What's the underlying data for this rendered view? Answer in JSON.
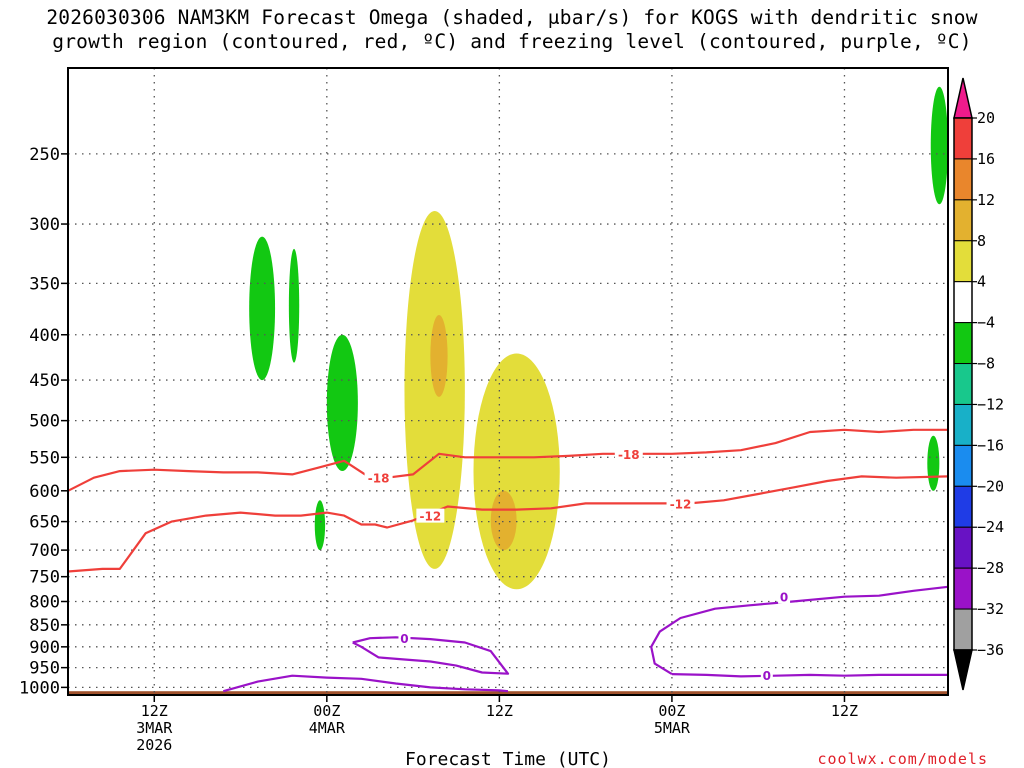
{
  "title": {
    "line1": "2026030306 NAM3KM Forecast Omega (shaded, μbar/s) for KOGS with dendritic snow",
    "line2": "growth region (contoured, red, ºC) and freezing level (contoured, purple, ºC)"
  },
  "credit": "coolwx.com/models",
  "chart_data": {
    "type": "contour",
    "xlabel": "Forecast Time (UTC)",
    "ylabel": "",
    "y_scale": "log-pressure",
    "ylim": [
      1020,
      200
    ],
    "xlim_hours": [
      0,
      51
    ],
    "grid": true,
    "y_ticks": [
      250,
      300,
      350,
      400,
      450,
      500,
      550,
      600,
      650,
      700,
      750,
      800,
      850,
      900,
      950,
      1000
    ],
    "x_ticks": [
      {
        "hour": 5,
        "lines": [
          "12Z",
          "3MAR",
          "2026"
        ]
      },
      {
        "hour": 15,
        "lines": [
          "00Z",
          "4MAR"
        ]
      },
      {
        "hour": 25,
        "lines": [
          "12Z"
        ]
      },
      {
        "hour": 35,
        "lines": [
          "00Z",
          "5MAR"
        ]
      },
      {
        "hour": 45,
        "lines": [
          "12Z"
        ]
      }
    ],
    "colorbar": {
      "levels": [
        "20",
        "16",
        "12",
        "8",
        "4",
        "−4",
        "−8",
        "−12",
        "−16",
        "−20",
        "−24",
        "−28",
        "−32",
        "−36"
      ],
      "colors": [
        "#f01b8c",
        "#ef3f3a",
        "#e9862c",
        "#e3b12f",
        "#e3dd3a",
        "#ffffff",
        "#12c812",
        "#18c88c",
        "#18b0c8",
        "#1a8cef",
        "#1f3ce6",
        "#6812c4",
        "#9a12c8",
        "#a0a0a0"
      ]
    },
    "omega_regions": [
      {
        "color": "#e3dd3a",
        "value_range": "4 to 8",
        "hours": [
          19.5,
          23.0
        ],
        "pressure": [
          290,
          735
        ]
      },
      {
        "color": "#e3dd3a",
        "value_range": "4 to 8",
        "hours": [
          23.5,
          28.5
        ],
        "pressure": [
          420,
          775
        ]
      },
      {
        "color": "#e3b12f",
        "value_range": "8 to 12",
        "hours": [
          21.0,
          22.0
        ],
        "pressure": [
          380,
          470
        ]
      },
      {
        "color": "#e3b12f",
        "value_range": "8 to 12",
        "hours": [
          24.5,
          26.0
        ],
        "pressure": [
          600,
          700
        ]
      },
      {
        "color": "#12c812",
        "value_range": "-4 to -8",
        "hours": [
          10.5,
          12.0
        ],
        "pressure": [
          310,
          450
        ]
      },
      {
        "color": "#12c812",
        "value_range": "-4 to -8",
        "hours": [
          12.8,
          13.4
        ],
        "pressure": [
          320,
          430
        ]
      },
      {
        "color": "#12c812",
        "value_range": "-4 to -8",
        "hours": [
          15.0,
          16.8
        ],
        "pressure": [
          400,
          570
        ]
      },
      {
        "color": "#12c812",
        "value_range": "-4 to -8",
        "hours": [
          14.3,
          14.9
        ],
        "pressure": [
          615,
          700
        ]
      },
      {
        "color": "#12c812",
        "value_range": "-4 to -8",
        "hours": [
          50.0,
          51.0
        ],
        "pressure": [
          210,
          285
        ]
      },
      {
        "color": "#12c812",
        "value_range": "-4 to -8",
        "hours": [
          49.8,
          50.5
        ],
        "pressure": [
          520,
          600
        ]
      }
    ],
    "series": [
      {
        "name": "-18",
        "color": "#ef3f3a",
        "x": [
          0,
          1.5,
          3,
          5,
          7,
          9,
          11,
          13,
          14.5,
          16,
          17.5,
          18.5,
          20,
          21.5,
          23,
          25,
          27,
          29,
          31,
          33,
          35,
          37,
          39,
          41,
          43,
          45,
          47,
          49,
          51
        ],
        "y": [
          600,
          580,
          570,
          568,
          570,
          572,
          572,
          575,
          565,
          555,
          580,
          580,
          575,
          545,
          550,
          550,
          550,
          548,
          545,
          545,
          545,
          543,
          540,
          530,
          515,
          512,
          515,
          512,
          512
        ]
      },
      {
        "name": "-12",
        "color": "#ef3f3a",
        "x": [
          0,
          2,
          3,
          4.5,
          6,
          8,
          10,
          12,
          13.5,
          15,
          16,
          17,
          17.8,
          18.5,
          20,
          22,
          24,
          26,
          28,
          30,
          32,
          34,
          36,
          38,
          40,
          42,
          44,
          46,
          48,
          51
        ],
        "y": [
          740,
          735,
          735,
          670,
          650,
          640,
          635,
          640,
          640,
          635,
          640,
          655,
          655,
          660,
          648,
          625,
          630,
          630,
          628,
          620,
          620,
          620,
          620,
          615,
          605,
          595,
          585,
          578,
          580,
          578
        ]
      },
      {
        "name": "0",
        "color": "#9a12c8",
        "x": [
          9,
          11,
          13,
          15,
          17,
          19,
          21,
          23,
          25,
          25.5
        ],
        "y": [
          1010,
          985,
          970,
          975,
          978,
          990,
          1000,
          1005,
          1008,
          1010
        ]
      },
      {
        "name": "0",
        "color": "#9a12c8",
        "x": [
          16.5,
          17.5,
          19,
          21,
          23,
          24.5,
          25.5,
          24,
          22.5,
          21,
          19.5,
          18,
          17,
          16.5
        ],
        "y": [
          890,
          880,
          878,
          882,
          890,
          910,
          965,
          962,
          945,
          935,
          930,
          925,
          900,
          890
        ]
      },
      {
        "name": "0",
        "color": "#9a12c8",
        "x": [
          35,
          37,
          39,
          41,
          43,
          45,
          47,
          49,
          51
        ],
        "y": [
          966,
          968,
          972,
          970,
          968,
          970,
          968,
          968,
          968
        ]
      },
      {
        "name": "0",
        "color": "#9a12c8",
        "x": [
          35,
          34,
          33.8,
          34.3,
          35.5,
          37.5,
          39.5,
          42,
          45,
          47,
          49,
          51
        ],
        "y": [
          966,
          940,
          900,
          865,
          835,
          815,
          808,
          800,
          790,
          788,
          778,
          770
        ]
      }
    ],
    "contour_labels": [
      {
        "text": "-18",
        "hour": 18.0,
        "pressure": 580,
        "color": "#ef3f3a"
      },
      {
        "text": "-18",
        "hour": 32.5,
        "pressure": 545,
        "color": "#ef3f3a"
      },
      {
        "text": "-12",
        "hour": 21.0,
        "pressure": 640,
        "color": "#ef3f3a"
      },
      {
        "text": "-12",
        "hour": 35.5,
        "pressure": 620,
        "color": "#ef3f3a"
      },
      {
        "text": "0",
        "hour": 19.5,
        "pressure": 880,
        "color": "#9a12c8"
      },
      {
        "text": "0",
        "hour": 41.5,
        "pressure": 790,
        "color": "#9a12c8"
      },
      {
        "text": "0",
        "hour": 40.5,
        "pressure": 968,
        "color": "#9a12c8"
      }
    ],
    "surface": {
      "color": "#a0522d",
      "pressure": 1010
    }
  }
}
